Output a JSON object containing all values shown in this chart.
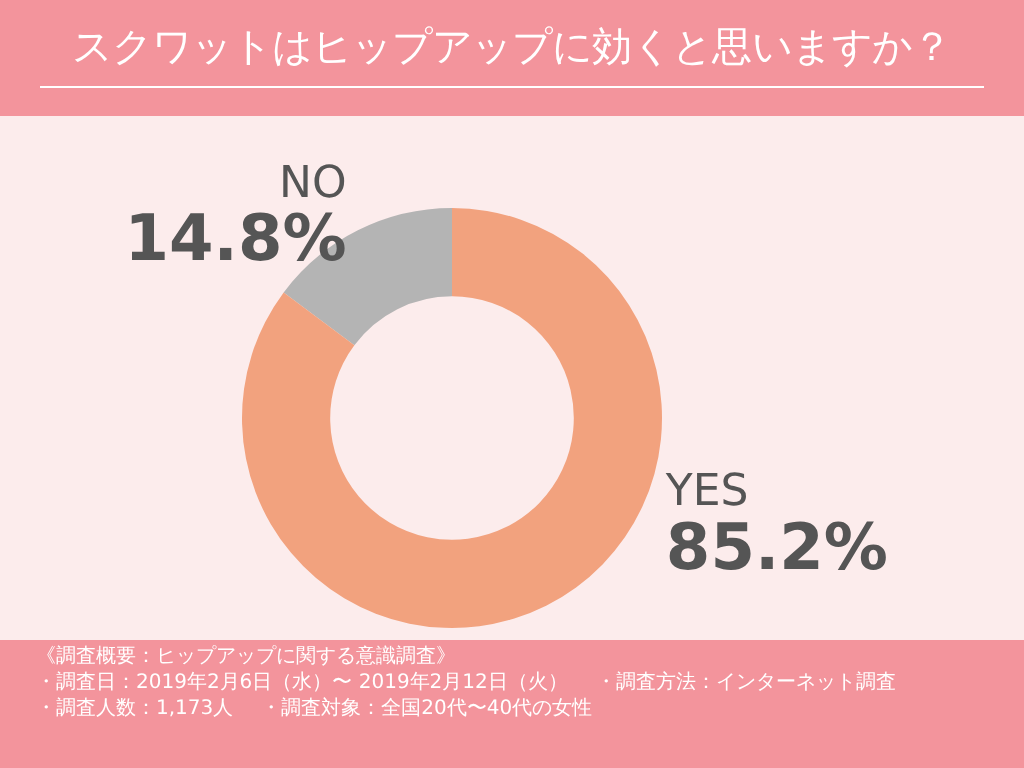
{
  "chart_data": {
    "type": "donut",
    "title": "スクワットはヒップアップに効くと思いますか？",
    "categories": [
      "NO",
      "YES"
    ],
    "values": [
      14.8,
      85.2
    ],
    "colors": [
      "#b4b4b4",
      "#f2a27e"
    ],
    "legend": false,
    "value_labels": [
      "14.8%",
      "85.2%"
    ],
    "annotations": [
      "《調査概要：ヒップアップに関する意識調査》",
      "・調査日：2019年2月6日（水）〜 2019年2月12日（火）",
      "・調査方法：インターネット調査",
      "・調査人数：1,173人",
      "・調査対象：全国20代〜40代の女性"
    ]
  }
}
